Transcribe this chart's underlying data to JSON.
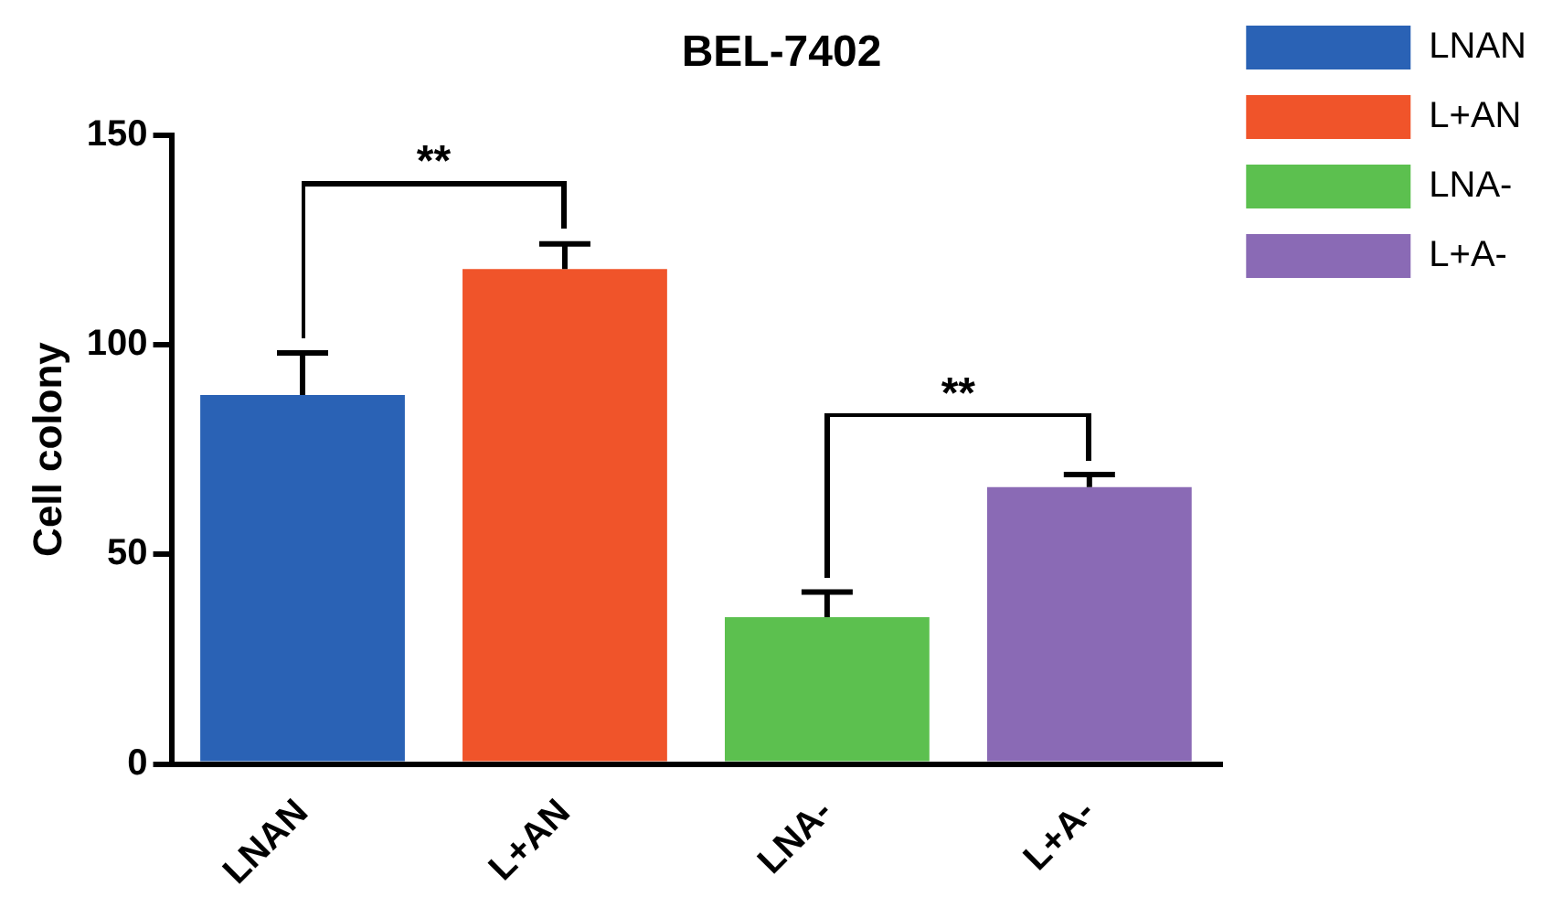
{
  "chart_data": {
    "type": "bar",
    "title": "BEL-7402",
    "ylabel": "Cell colony",
    "categories": [
      "LNAN",
      "L+AN",
      "LNA-",
      "L+A-"
    ],
    "series": [
      {
        "name": "LNAN",
        "color": "#2a62b5",
        "values": [
          88,
          null,
          null,
          null
        ],
        "errors": [
          10,
          null,
          null,
          null
        ]
      },
      {
        "name": "L+AN",
        "color": "#f0542a",
        "values": [
          null,
          118,
          null,
          null
        ],
        "errors": [
          null,
          6,
          null,
          null
        ]
      },
      {
        "name": "LNA-",
        "color": "#5cc04f",
        "values": [
          null,
          null,
          35,
          null
        ],
        "errors": [
          null,
          null,
          6,
          null
        ]
      },
      {
        "name": "L+A-",
        "color": "#8a6ab5",
        "values": [
          null,
          null,
          null,
          66
        ],
        "errors": [
          null,
          null,
          null,
          3
        ]
      }
    ],
    "ylim": [
      0,
      150
    ],
    "yticks": [
      0,
      50,
      100,
      150
    ],
    "grid": false,
    "legend": "top right",
    "annotations": [
      "**",
      "**"
    ]
  }
}
